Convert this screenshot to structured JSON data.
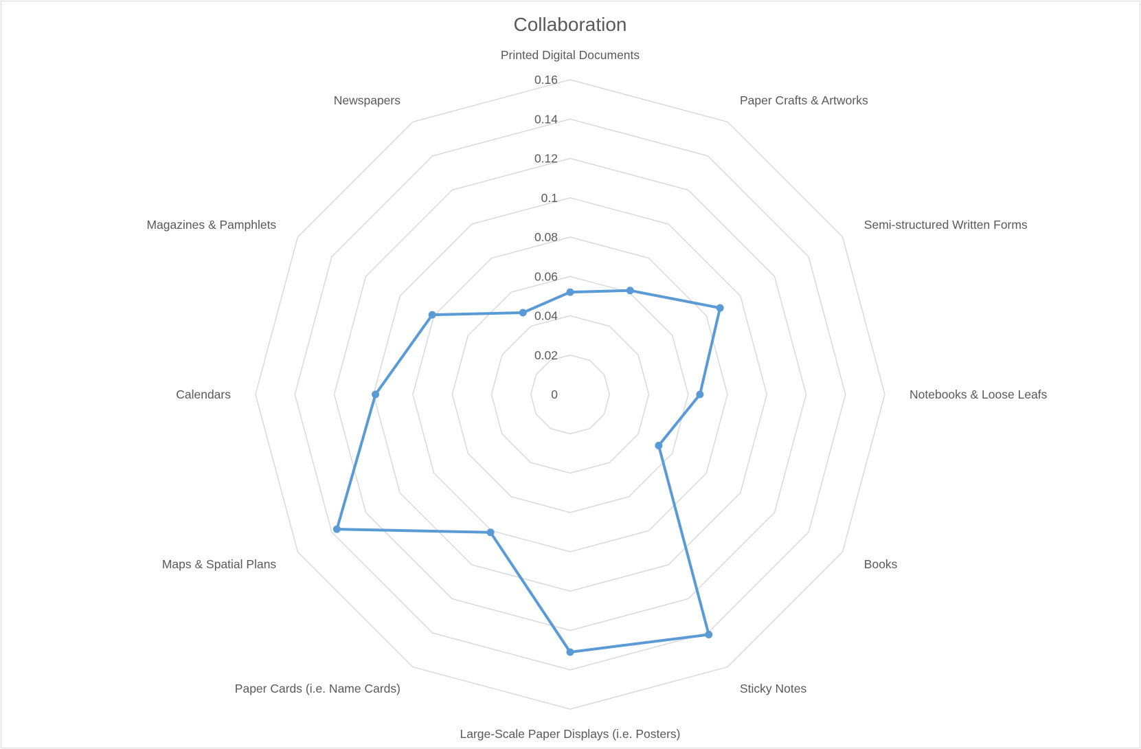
{
  "chart_data": {
    "type": "radar",
    "title": "Collaboration",
    "categories": [
      "Printed Digital Documents",
      "Paper Crafts & Artworks",
      "Semi-structured Written Forms",
      "Notebooks & Loose Leafs",
      "Books",
      "Sticky Notes",
      "Large-Scale Paper Displays (i.e. Posters)",
      "Paper Cards (i.e. Name Cards)",
      "Maps & Spatial Plans",
      "Calendars",
      "Magazines & Pamphlets",
      "Newspapers"
    ],
    "series": [
      {
        "values": [
          0.052,
          0.061,
          0.088,
          0.066,
          0.052,
          0.141,
          0.131,
          0.081,
          0.137,
          0.099,
          0.081,
          0.048
        ],
        "color": "#5b9bd5"
      }
    ],
    "radial_ticks": [
      "0",
      "0.02",
      "0.04",
      "0.06",
      "0.08",
      "0.1",
      "0.12",
      "0.14",
      "0.16"
    ],
    "rlim": [
      0,
      0.16
    ],
    "grid": true,
    "grid_color": "#d9d9d9",
    "legend": "none"
  }
}
